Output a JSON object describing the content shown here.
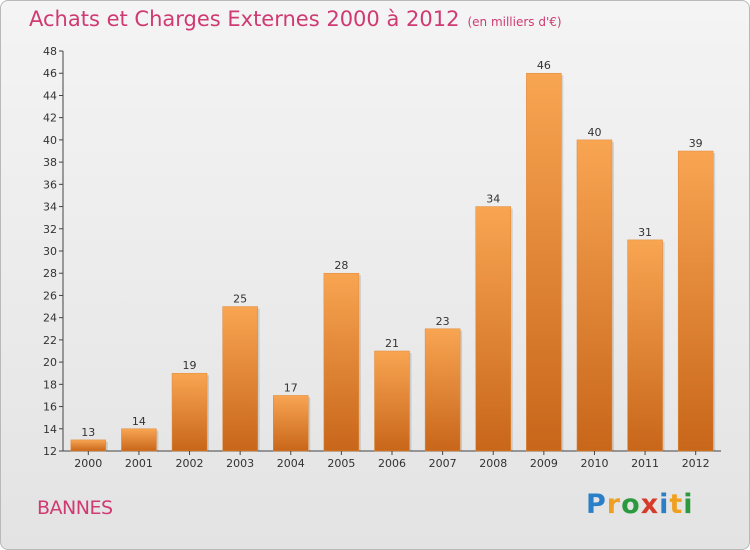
{
  "chart_data": {
    "type": "bar",
    "title": "Achats et Charges Externes 2000 à 2012",
    "subtitle": "(en milliers d'€)",
    "categories": [
      "2000",
      "2001",
      "2002",
      "2003",
      "2004",
      "2005",
      "2006",
      "2007",
      "2008",
      "2009",
      "2010",
      "2011",
      "2012"
    ],
    "values": [
      13,
      14,
      19,
      25,
      17,
      28,
      21,
      23,
      34,
      46,
      40,
      31,
      39
    ],
    "ylim": [
      12,
      48
    ],
    "yticks": [
      12,
      14,
      16,
      18,
      20,
      22,
      24,
      26,
      28,
      30,
      32,
      34,
      36,
      38,
      40,
      42,
      44,
      46,
      48
    ],
    "grid": false,
    "bar_color_top": "#f8a552",
    "bar_color_bottom": "#c8661a"
  },
  "commune": "BANNES",
  "logo": {
    "letters": [
      "P",
      "r",
      "o",
      "x",
      "i",
      "t",
      "i"
    ],
    "colors": [
      "#2a7fc8",
      "#f0a020",
      "#2a9a3c",
      "#d63a2a",
      "#2a7fc8",
      "#f0a020",
      "#2a9a3c"
    ]
  }
}
